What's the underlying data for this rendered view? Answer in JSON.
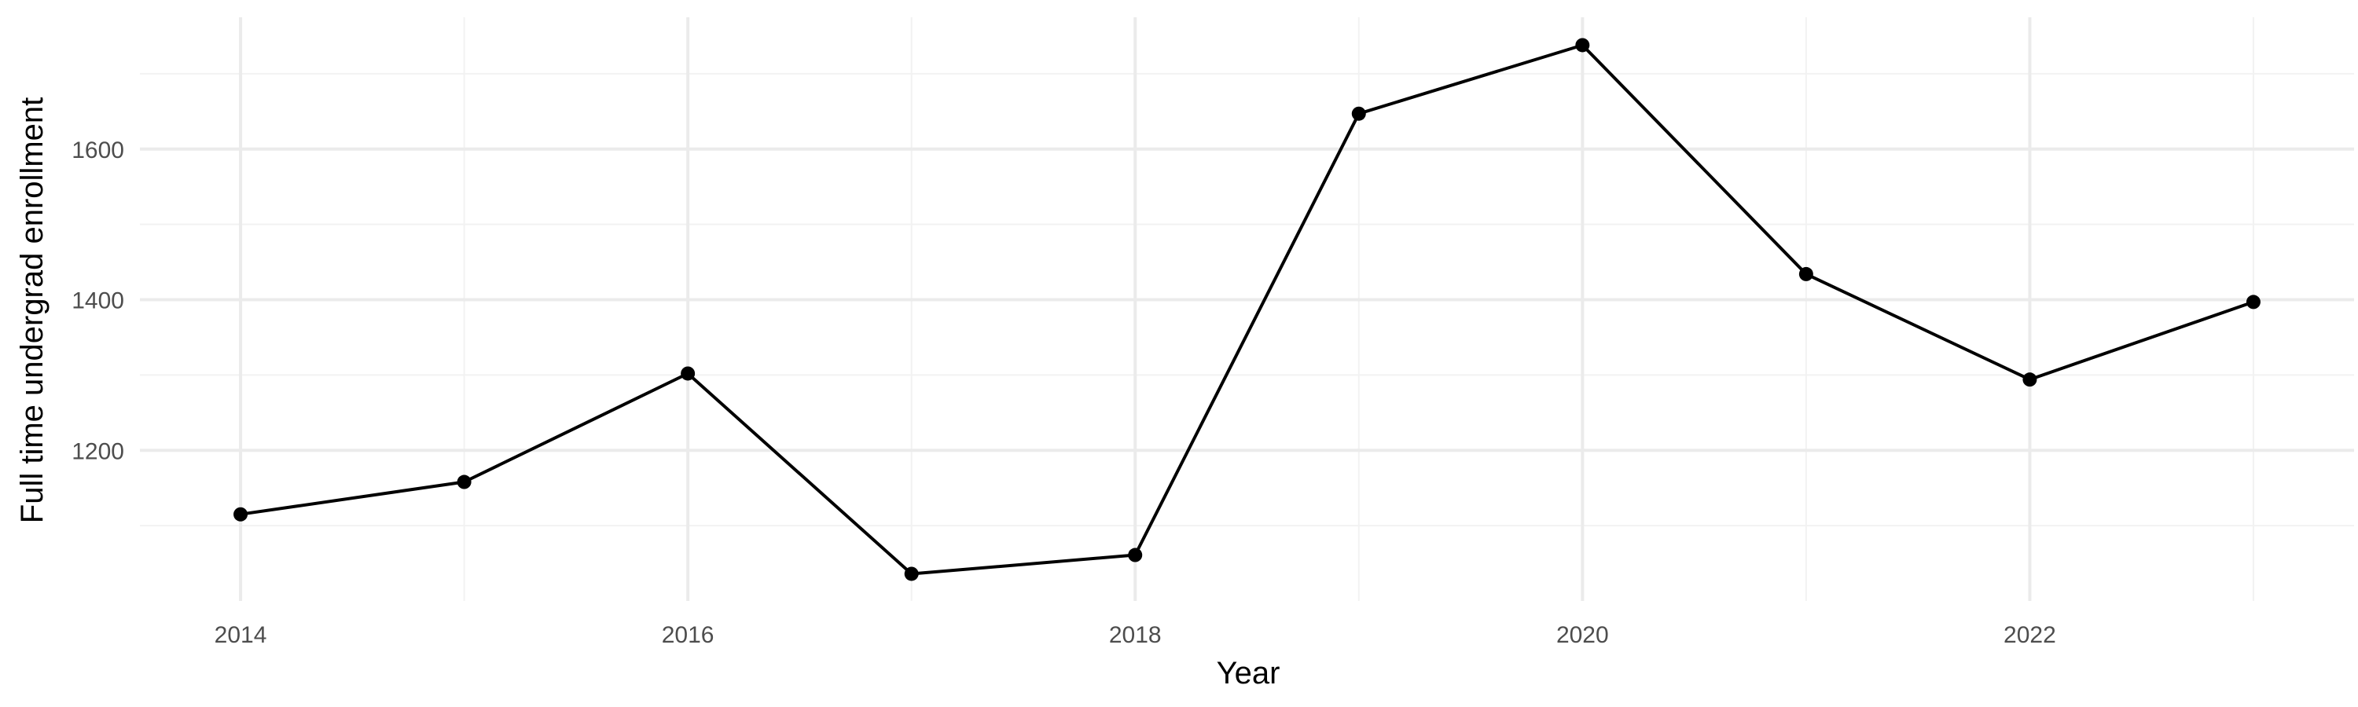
{
  "chart_data": {
    "type": "line",
    "title": "",
    "xlabel": "Year",
    "ylabel": "Full time undergrad enrollment",
    "x": [
      2014,
      2015,
      2016,
      2017,
      2018,
      2019,
      2020,
      2021,
      2022,
      2023
    ],
    "series": [
      {
        "values": [
          1115,
          1158,
          1302,
          1036,
          1061,
          1647,
          1738,
          1434,
          1294,
          1397
        ]
      }
    ],
    "xlim": [
      2013.55,
      2023.45
    ],
    "ylim": [
      1000,
      1775
    ],
    "x_ticks": [
      2014,
      2016,
      2018,
      2020,
      2022
    ],
    "x_tick_labels": [
      "2014",
      "2016",
      "2018",
      "2020",
      "2022"
    ],
    "y_ticks": [
      1200,
      1400,
      1600
    ],
    "y_tick_labels": [
      "1200",
      "1400",
      "1600"
    ],
    "grid": true,
    "legend": "none",
    "colors": {
      "line": "#000000",
      "point": "#000000",
      "grid_major": "#ebebeb",
      "grid_minor": "#f2f2f2",
      "tick_label": "#4d4d4d"
    }
  }
}
